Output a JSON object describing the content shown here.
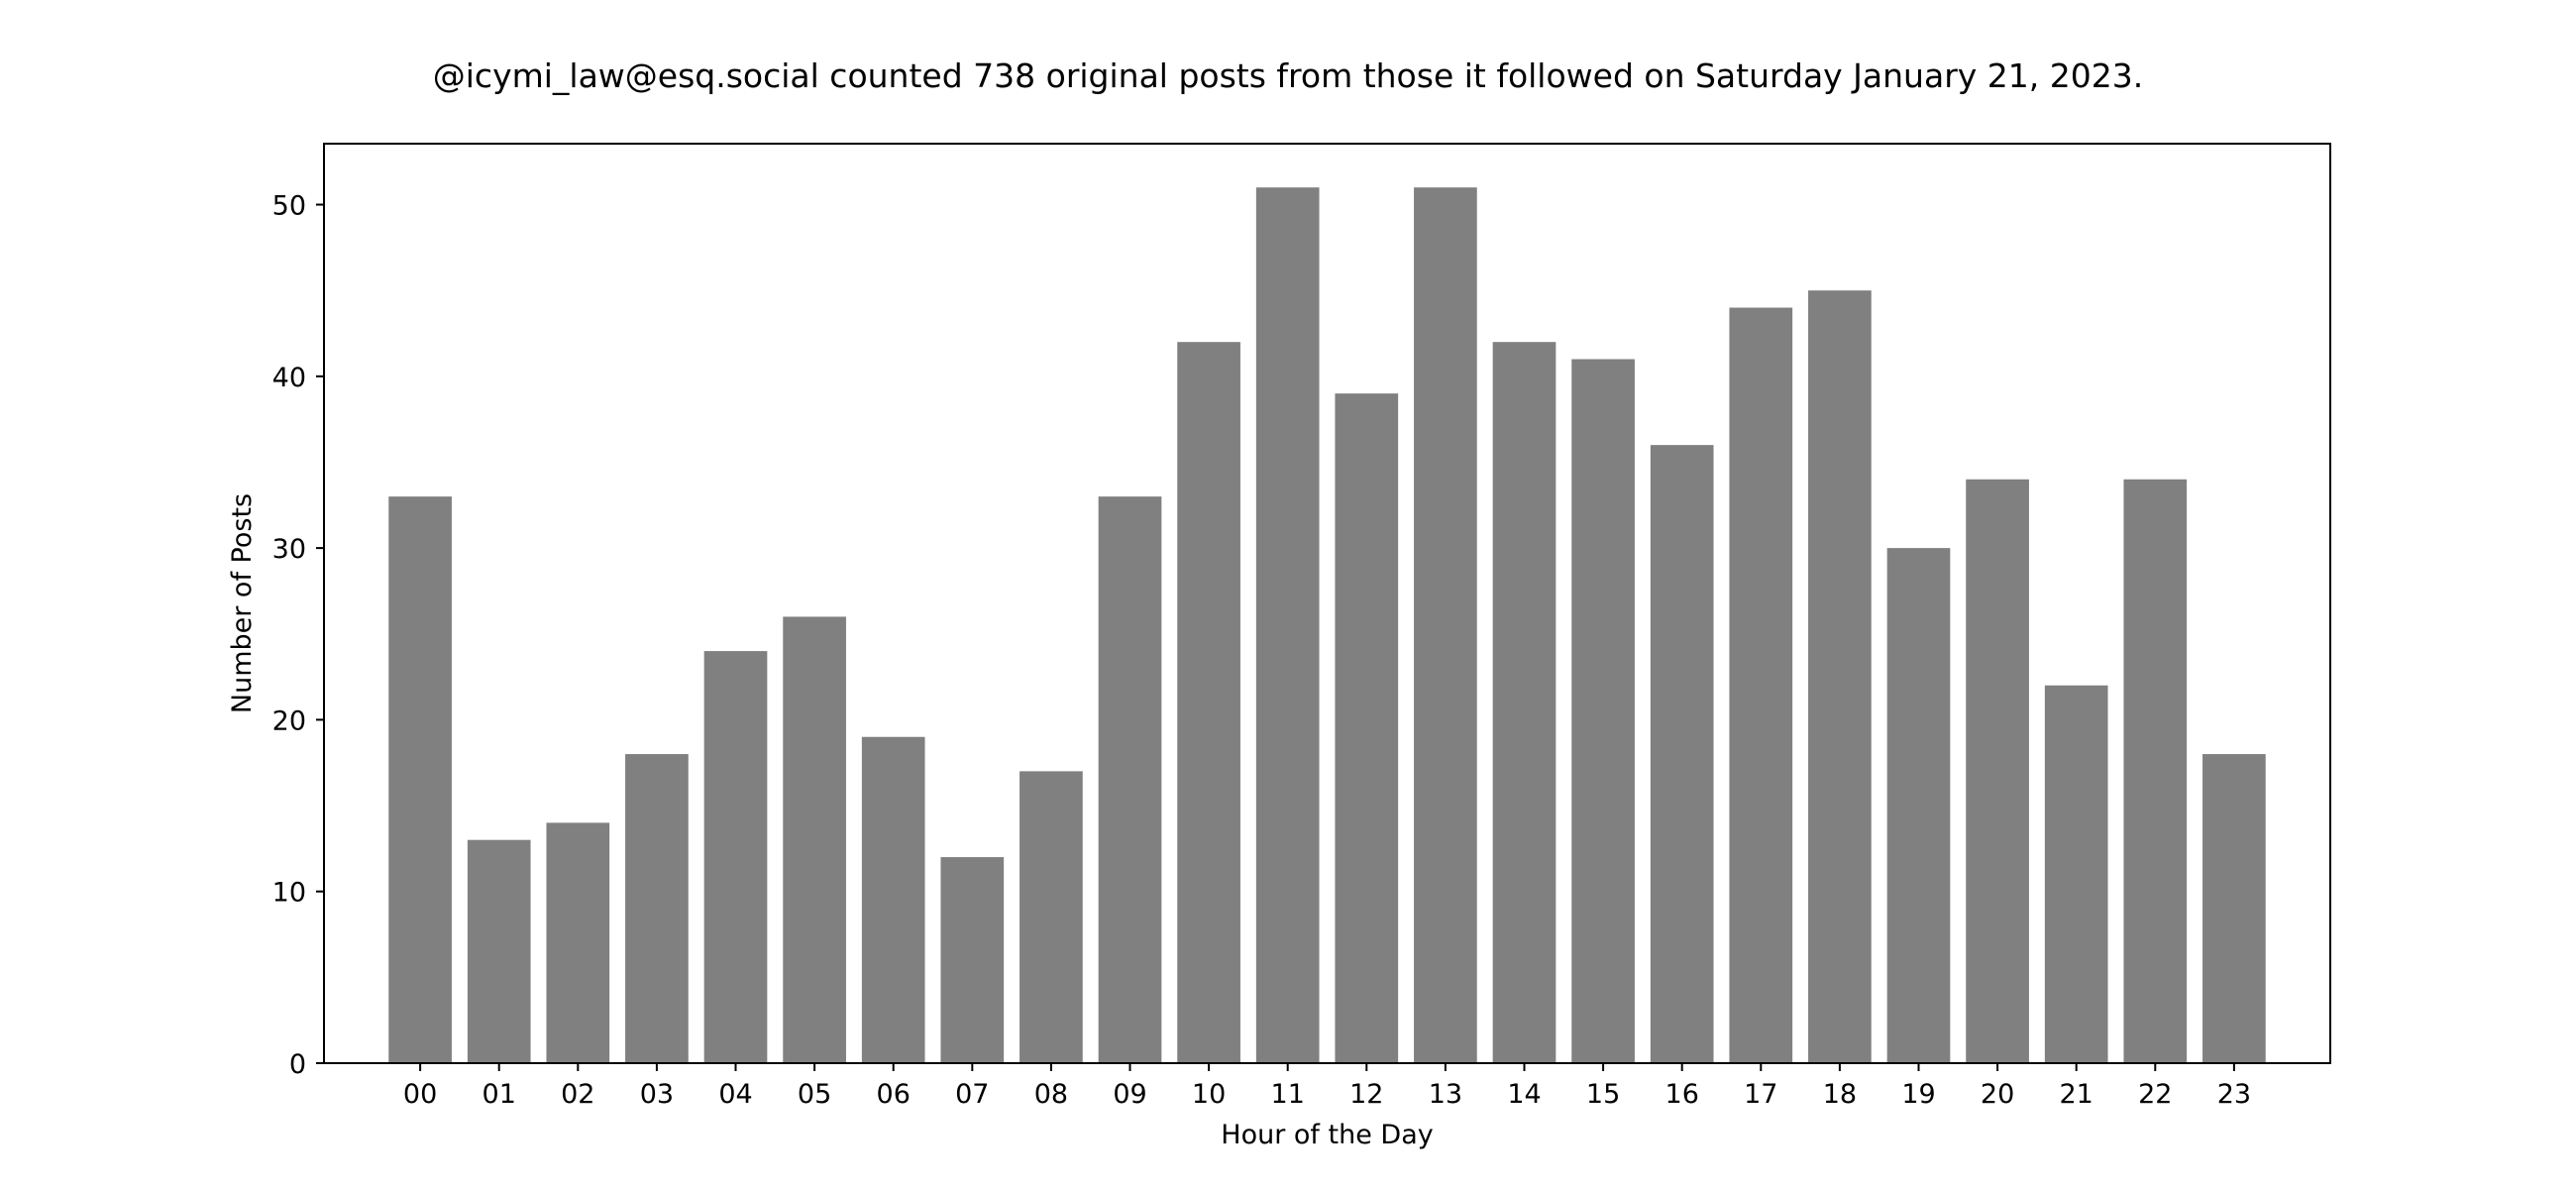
{
  "chart_data": {
    "type": "bar",
    "title": "@icymi_law@esq.social counted 738 original posts from those it followed on Saturday January 21, 2023.",
    "xlabel": "Hour of the Day",
    "ylabel": "Number of Posts",
    "categories": [
      "00",
      "01",
      "02",
      "03",
      "04",
      "05",
      "06",
      "07",
      "08",
      "09",
      "10",
      "11",
      "12",
      "13",
      "14",
      "15",
      "16",
      "17",
      "18",
      "19",
      "20",
      "21",
      "22",
      "23"
    ],
    "values": [
      33,
      13,
      14,
      18,
      24,
      26,
      19,
      12,
      17,
      33,
      42,
      51,
      39,
      51,
      42,
      41,
      36,
      44,
      45,
      30,
      34,
      22,
      34,
      18
    ],
    "ylim": [
      0,
      53.55
    ],
    "yticks": [
      0,
      10,
      20,
      30,
      40,
      50
    ],
    "grid": false,
    "bar_color": "#808080"
  }
}
